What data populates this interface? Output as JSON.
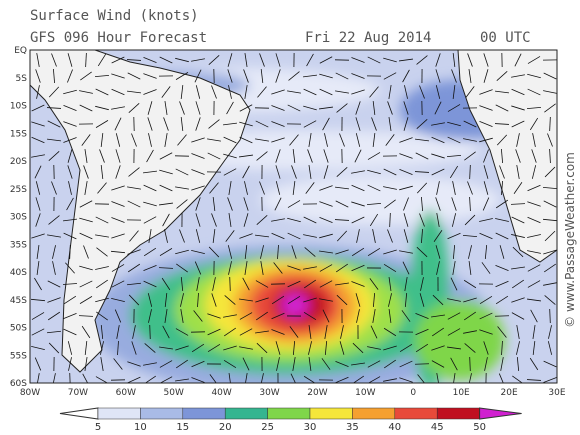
{
  "header": {
    "title": "Surface Wind (knots)",
    "subtitle": "GFS 096 Hour Forecast",
    "date": "Fri 22 Aug 2014",
    "time": "00 UTC"
  },
  "map": {
    "lat_labels": [
      "EQ",
      "5S",
      "10S",
      "15S",
      "20S",
      "25S",
      "30S",
      "35S",
      "40S",
      "45S",
      "50S",
      "55S",
      "60S"
    ],
    "lon_labels": [
      "80W",
      "70W",
      "60W",
      "50W",
      "40W",
      "30W",
      "20W",
      "10W",
      "0",
      "10E",
      "20E",
      "30E"
    ]
  },
  "colorbar": {
    "labels": [
      5,
      10,
      15,
      20,
      25,
      30,
      35,
      40,
      45,
      50
    ]
  },
  "watermark": "© www.PassageWeather.com"
}
